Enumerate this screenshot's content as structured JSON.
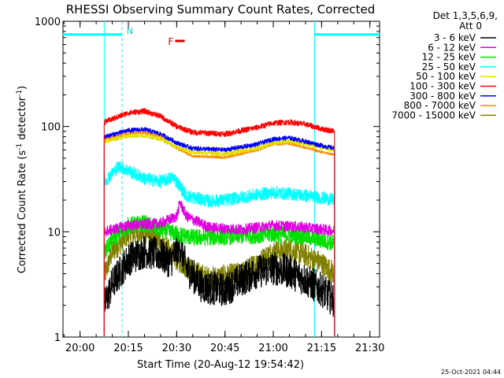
{
  "chart_data": {
    "type": "line",
    "title": "RHESSI Observing Summary Count Rates, Corrected",
    "xlabel": "Start Time (20-Aug-12 19:54:42)",
    "ylabel_main": "Corrected Count Rate (s",
    "ylabel_sup1": "-1",
    "ylabel_mid": " detector",
    "ylabel_sup2": "-1",
    "ylabel_end": ")",
    "yscale": "log",
    "ylim": [
      1,
      1000
    ],
    "xlim": [
      "19:54:42",
      "21:33:00"
    ],
    "x_ticks": [
      "20:00",
      "20:15",
      "20:30",
      "20:45",
      "21:00",
      "21:15",
      "21:30"
    ],
    "y_ticks": [
      {
        "value": 1,
        "label": "1"
      },
      {
        "value": 10,
        "label": "10"
      },
      {
        "value": 100,
        "label": "100"
      },
      {
        "value": 1000,
        "label": "1000"
      }
    ],
    "legend_header": [
      "Det 1,3,5,6,9,",
      "Att 0"
    ],
    "legend_placement": "outside-right",
    "data_start": "20:07:30",
    "data_end": "21:19:00",
    "series": [
      {
        "name": "3 - 6 keV",
        "color": "#000000",
        "noise": 0.16,
        "points": [
          [
            "20:07:30",
            2.0
          ],
          [
            "20:10",
            3.2
          ],
          [
            "20:15",
            5.5
          ],
          [
            "20:20",
            6.5
          ],
          [
            "20:25",
            6.0
          ],
          [
            "20:28",
            5.2
          ],
          [
            "20:31",
            7.5
          ],
          [
            "20:33",
            4.5
          ],
          [
            "20:38",
            3.0
          ],
          [
            "20:45",
            2.8
          ],
          [
            "20:50",
            3.5
          ],
          [
            "20:55",
            4.2
          ],
          [
            "21:00",
            4.5
          ],
          [
            "21:05",
            4.2
          ],
          [
            "21:10",
            3.5
          ],
          [
            "21:15",
            2.8
          ],
          [
            "21:19",
            2.2
          ]
        ]
      },
      {
        "name": "6 - 12 keV",
        "color": "#e000e0",
        "noise": 0.05,
        "points": [
          [
            "20:07:30",
            10.0
          ],
          [
            "20:15",
            11.5
          ],
          [
            "20:25",
            12.0
          ],
          [
            "20:30",
            14.0
          ],
          [
            "20:31",
            19.0
          ],
          [
            "20:33",
            14.0
          ],
          [
            "20:40",
            11.0
          ],
          [
            "20:50",
            10.5
          ],
          [
            "21:00",
            11.5
          ],
          [
            "21:10",
            11.0
          ],
          [
            "21:19",
            10.2
          ]
        ]
      },
      {
        "name": "12 - 25 keV",
        "color": "#00e000",
        "noise": 0.08,
        "points": [
          [
            "20:07:30",
            6.5
          ],
          [
            "20:10",
            8.5
          ],
          [
            "20:15",
            11.5
          ],
          [
            "20:20",
            12.0
          ],
          [
            "20:25",
            10.5
          ],
          [
            "20:30",
            9.5
          ],
          [
            "20:35",
            8.8
          ],
          [
            "20:45",
            9.0
          ],
          [
            "20:55",
            9.3
          ],
          [
            "21:00",
            9.5
          ],
          [
            "21:05",
            9.3
          ],
          [
            "21:10",
            9.0
          ],
          [
            "21:15",
            8.3
          ],
          [
            "21:19",
            7.8
          ]
        ]
      },
      {
        "name": "25 - 50 keV",
        "color": "#00ffff",
        "noise": 0.06,
        "points": [
          [
            "20:07:30",
            30.0
          ],
          [
            "20:12",
            42.0
          ],
          [
            "20:15",
            38.0
          ],
          [
            "20:20",
            32.0
          ],
          [
            "20:25",
            30.0
          ],
          [
            "20:29",
            33.0
          ],
          [
            "20:33",
            22.0
          ],
          [
            "20:40",
            19.5
          ],
          [
            "20:45",
            20.0
          ],
          [
            "20:55",
            22.5
          ],
          [
            "21:00",
            23.5
          ],
          [
            "21:05",
            23.0
          ],
          [
            "21:10",
            22.0
          ],
          [
            "21:15",
            21.0
          ],
          [
            "21:19",
            20.0
          ]
        ]
      },
      {
        "name": "50 - 100 keV",
        "color": "#e0e000",
        "noise": 0.02,
        "points": [
          [
            "20:07:30",
            72.0
          ],
          [
            "20:15",
            82.0
          ],
          [
            "20:20",
            82.0
          ],
          [
            "20:25",
            76.0
          ],
          [
            "20:30",
            64.0
          ],
          [
            "20:35",
            57.0
          ],
          [
            "20:45",
            55.0
          ],
          [
            "20:55",
            62.0
          ],
          [
            "21:00",
            70.0
          ],
          [
            "21:05",
            72.0
          ],
          [
            "21:10",
            68.0
          ],
          [
            "21:15",
            63.0
          ],
          [
            "21:19",
            60.0
          ]
        ]
      },
      {
        "name": "100 - 300 keV",
        "color": "#ff0000",
        "noise": 0.025,
        "points": [
          [
            "20:07:30",
            110.0
          ],
          [
            "20:15",
            135.0
          ],
          [
            "20:20",
            140.0
          ],
          [
            "20:25",
            125.0
          ],
          [
            "20:30",
            100.0
          ],
          [
            "20:35",
            88.0
          ],
          [
            "20:45",
            85.0
          ],
          [
            "20:55",
            98.0
          ],
          [
            "21:00",
            108.0
          ],
          [
            "21:05",
            110.0
          ],
          [
            "21:10",
            105.0
          ],
          [
            "21:15",
            95.0
          ],
          [
            "21:19",
            90.0
          ]
        ]
      },
      {
        "name": "300 - 800 keV",
        "color": "#0000ff",
        "noise": 0.02,
        "points": [
          [
            "20:07:30",
            80.0
          ],
          [
            "20:15",
            92.0
          ],
          [
            "20:20",
            94.0
          ],
          [
            "20:25",
            85.0
          ],
          [
            "20:30",
            70.0
          ],
          [
            "20:35",
            62.0
          ],
          [
            "20:45",
            60.0
          ],
          [
            "20:55",
            68.0
          ],
          [
            "21:00",
            76.0
          ],
          [
            "21:05",
            78.0
          ],
          [
            "21:10",
            72.0
          ],
          [
            "21:15",
            66.0
          ],
          [
            "21:19",
            62.0
          ]
        ]
      },
      {
        "name": "800 - 7000 keV",
        "color": "#ff8c00",
        "noise": 0.012,
        "points": [
          [
            "20:07:30",
            75.0
          ],
          [
            "20:15",
            86.0
          ],
          [
            "20:20",
            88.0
          ],
          [
            "20:25",
            80.0
          ],
          [
            "20:30",
            62.0
          ],
          [
            "20:35",
            52.0
          ],
          [
            "20:45",
            51.0
          ],
          [
            "20:55",
            60.0
          ],
          [
            "21:00",
            68.0
          ],
          [
            "21:05",
            69.0
          ],
          [
            "21:10",
            63.0
          ],
          [
            "21:15",
            57.0
          ],
          [
            "21:19",
            54.0
          ]
        ]
      },
      {
        "name": "7000 - 15000 keV",
        "color": "#808000",
        "noise": 0.11,
        "points": [
          [
            "20:07:30",
            3.8
          ],
          [
            "20:10",
            6.5
          ],
          [
            "20:15",
            9.5
          ],
          [
            "20:20",
            10.0
          ],
          [
            "20:25",
            8.0
          ],
          [
            "20:30",
            5.5
          ],
          [
            "20:35",
            4.2
          ],
          [
            "20:40",
            3.6
          ],
          [
            "20:50",
            4.0
          ],
          [
            "20:55",
            5.0
          ],
          [
            "21:00",
            6.5
          ],
          [
            "21:05",
            6.8
          ],
          [
            "21:10",
            6.0
          ],
          [
            "21:15",
            5.0
          ],
          [
            "21:19",
            4.0
          ]
        ]
      }
    ],
    "night_intervals": [
      {
        "label": "N",
        "start": "19:54:42",
        "end": "20:13:00"
      },
      {
        "label": "",
        "start": "21:12:50",
        "end": "21:33:00"
      }
    ],
    "saa_marker_level": 750,
    "flare": {
      "label": "F",
      "start": "20:29:30",
      "end": "20:32:30",
      "level": 650,
      "color": "#e00000"
    }
  },
  "footer": {
    "timestamp": "25-Oct-2021 04:44"
  }
}
